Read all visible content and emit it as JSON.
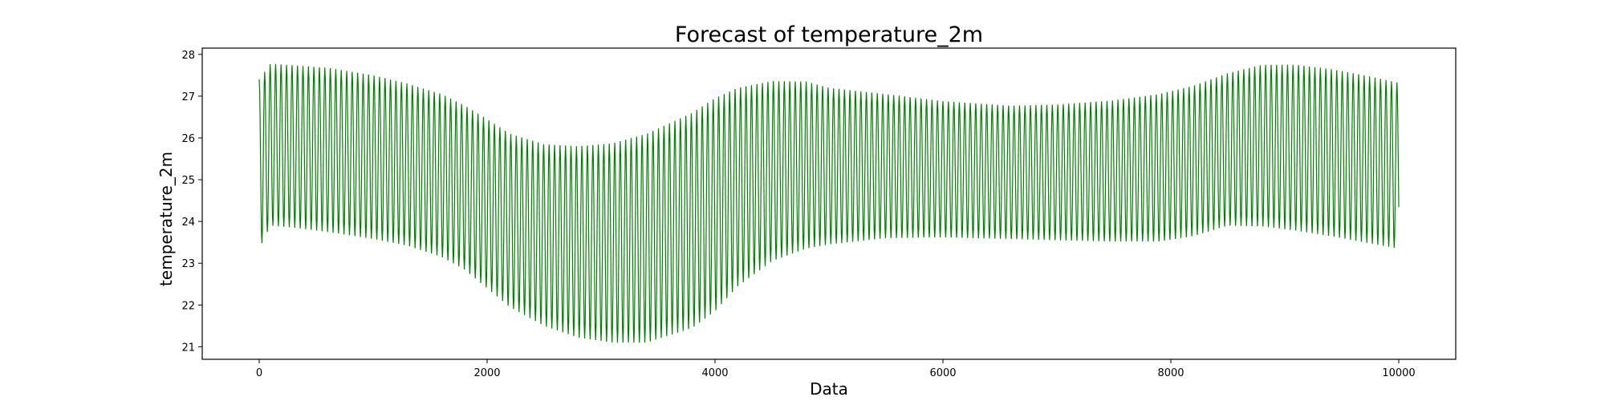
{
  "chart_data": {
    "type": "line",
    "title": "Forecast of temperature_2m",
    "xlabel": "Data",
    "ylabel": "temperature_2m",
    "xlim": [
      -500,
      10500
    ],
    "ylim": [
      20.7,
      28.15
    ],
    "xticks": [
      0,
      2000,
      4000,
      6000,
      8000,
      10000
    ],
    "yticks": [
      21,
      22,
      23,
      24,
      25,
      26,
      27,
      28
    ],
    "grid": false,
    "legend": "none",
    "color": "#008000",
    "series": [
      {
        "oscillation_period": 48,
        "x": [
          0,
          100,
          300,
          600,
          1000,
          1300,
          1600,
          1800,
          2000,
          2200,
          2500,
          2800,
          3100,
          3400,
          3800,
          4000,
          4200,
          4500,
          4800,
          5000,
          5500,
          6000,
          6600,
          7000,
          7500,
          7900,
          8200,
          8500,
          8800,
          9100,
          9400,
          9700,
          10000
        ],
        "upper_envelope": [
          27.4,
          27.78,
          27.74,
          27.68,
          27.5,
          27.3,
          27.05,
          26.78,
          26.45,
          26.1,
          25.85,
          25.8,
          25.87,
          26.1,
          26.6,
          26.95,
          27.2,
          27.36,
          27.35,
          27.2,
          27.05,
          26.88,
          26.77,
          26.8,
          26.9,
          27.05,
          27.25,
          27.55,
          27.75,
          27.75,
          27.65,
          27.5,
          27.32
        ],
        "lower_envelope": [
          23.35,
          23.9,
          23.85,
          23.75,
          23.58,
          23.42,
          23.15,
          22.85,
          22.4,
          21.95,
          21.5,
          21.22,
          21.1,
          21.1,
          21.45,
          21.85,
          22.45,
          23.05,
          23.35,
          23.45,
          23.6,
          23.62,
          23.58,
          23.55,
          23.52,
          23.52,
          23.65,
          23.9,
          23.88,
          23.78,
          23.65,
          23.5,
          23.35
        ]
      }
    ]
  }
}
